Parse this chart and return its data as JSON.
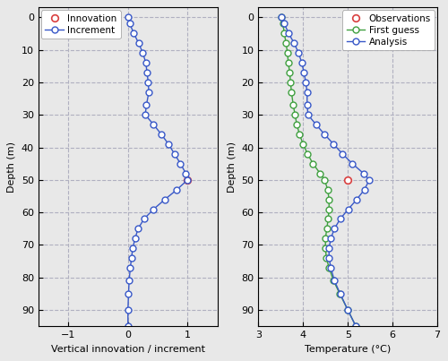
{
  "depths": [
    0,
    2,
    5,
    8,
    11,
    14,
    17,
    20,
    23,
    27,
    30,
    33,
    36,
    39,
    42,
    45,
    48,
    50,
    53,
    56,
    59,
    62,
    65,
    68,
    71,
    74,
    77,
    81,
    85,
    90,
    95
  ],
  "increment": [
    0.0,
    0.03,
    0.1,
    0.18,
    0.25,
    0.3,
    0.32,
    0.34,
    0.35,
    0.31,
    0.29,
    0.43,
    0.56,
    0.68,
    0.78,
    0.88,
    0.97,
    1.0,
    0.82,
    0.62,
    0.43,
    0.27,
    0.17,
    0.12,
    0.08,
    0.06,
    0.04,
    0.02,
    0.01,
    0.0,
    0.0
  ],
  "innovation_depth": 50,
  "innovation_value": 1.0,
  "first_guess_depths": [
    0,
    2,
    5,
    8,
    11,
    14,
    17,
    20,
    23,
    27,
    30,
    33,
    36,
    39,
    42,
    45,
    48,
    50,
    53,
    56,
    59,
    62,
    65,
    68,
    71,
    74,
    77,
    81,
    85,
    90,
    95
  ],
  "first_guess": [
    3.52,
    3.55,
    3.58,
    3.62,
    3.65,
    3.67,
    3.7,
    3.72,
    3.74,
    3.78,
    3.82,
    3.86,
    3.92,
    4.0,
    4.1,
    4.22,
    4.38,
    4.48,
    4.55,
    4.58,
    4.58,
    4.56,
    4.53,
    4.5,
    4.5,
    4.52,
    4.58,
    4.68,
    4.82,
    5.0,
    5.18
  ],
  "analysis_depths": [
    0,
    2,
    5,
    8,
    11,
    14,
    17,
    20,
    23,
    27,
    30,
    33,
    36,
    39,
    42,
    45,
    48,
    50,
    53,
    56,
    59,
    62,
    65,
    68,
    71,
    74,
    77,
    81,
    85,
    90,
    95
  ],
  "analysis": [
    3.52,
    3.58,
    3.68,
    3.8,
    3.9,
    3.97,
    4.02,
    4.06,
    4.09,
    4.09,
    4.11,
    4.29,
    4.48,
    4.68,
    4.88,
    5.1,
    5.35,
    5.48,
    5.37,
    5.2,
    5.01,
    4.83,
    4.7,
    4.62,
    4.58,
    4.58,
    4.62,
    4.7,
    4.83,
    5.0,
    5.18
  ],
  "observation_temp": 5.0,
  "observation_depth": 50,
  "left_panel": {
    "xlim": [
      -1.5,
      1.5
    ],
    "xticks": [
      -1,
      0,
      1
    ],
    "xlabel": "Vertical innovation / increment",
    "ylim": [
      95,
      -3
    ],
    "yticks": [
      0,
      10,
      20,
      30,
      40,
      50,
      60,
      70,
      80,
      90
    ],
    "ylabel": "Depth (m)",
    "innovation_color": "#d94040",
    "increment_color": "#3858c8",
    "grid_color": "#b0b0c0",
    "grid_style": "--"
  },
  "right_panel": {
    "xlim": [
      3.0,
      7.0
    ],
    "xticks": [
      3,
      4,
      5,
      6,
      7
    ],
    "xlabel": "Temperature (°C)",
    "ylim": [
      95,
      -3
    ],
    "yticks": [
      0,
      10,
      20,
      30,
      40,
      50,
      60,
      70,
      80,
      90
    ],
    "ylabel": "Depth (m)",
    "obs_color": "#d94040",
    "fg_color": "#40a040",
    "analysis_color": "#3858c8",
    "grid_color": "#b0b0c0",
    "grid_style": "--"
  },
  "fig_facecolor": "#e8e8e8",
  "ax_facecolor": "#e8e8e8"
}
